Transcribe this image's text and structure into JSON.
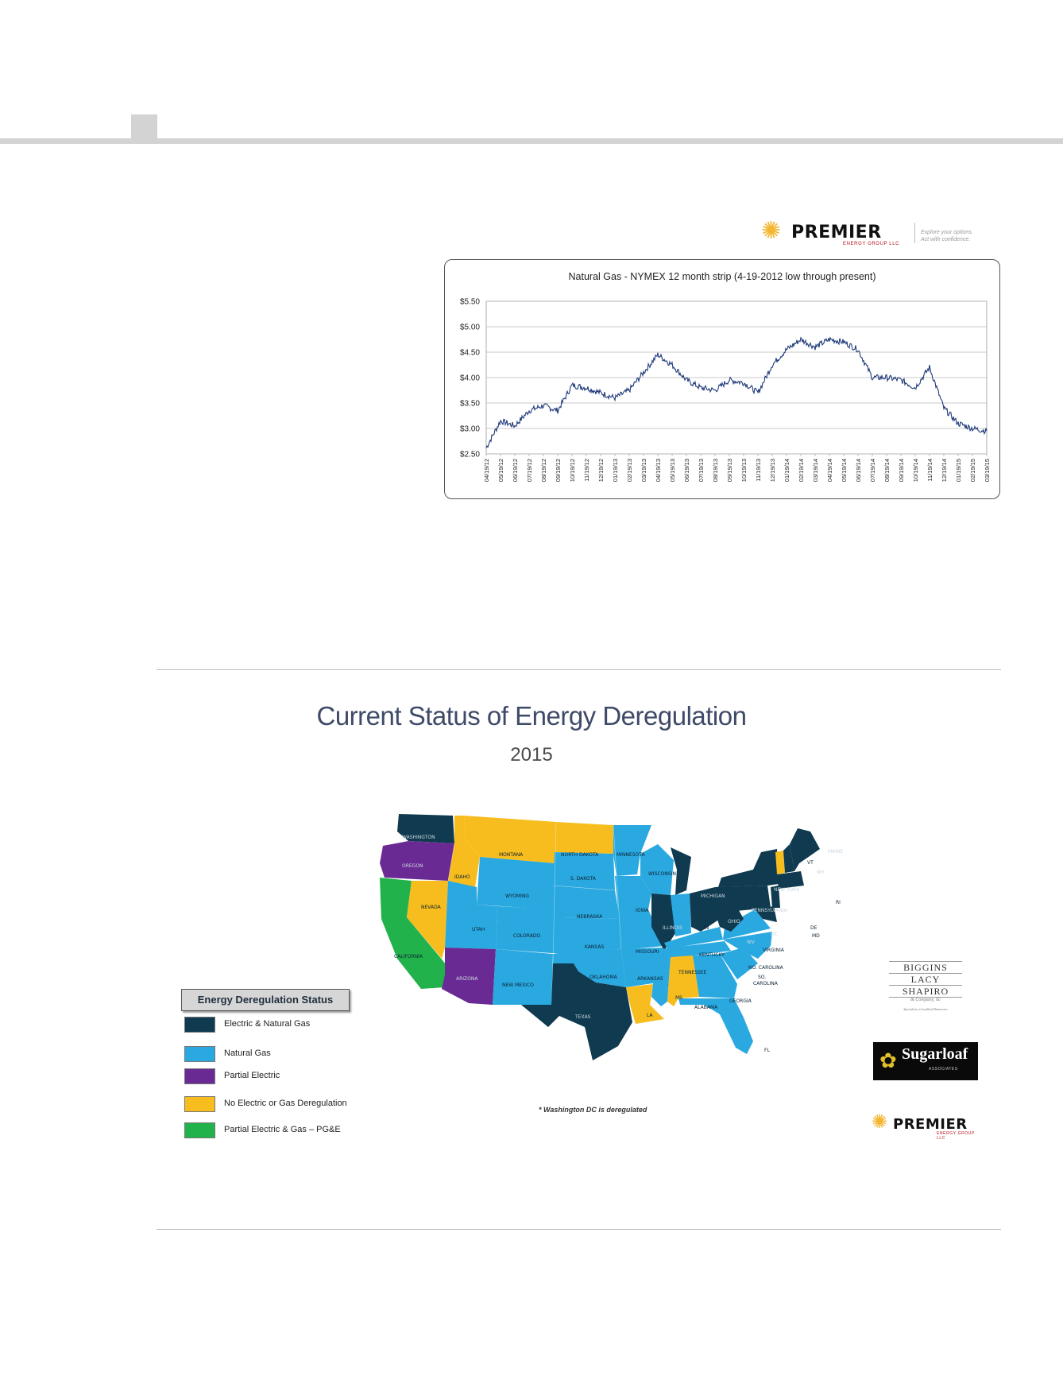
{
  "premier_logo": {
    "brand": "PREMIER",
    "subtitle": "ENERGY GROUP LLC",
    "tagline_line1": "Explore your options.",
    "tagline_line2": "Act with confidence."
  },
  "chart_data": {
    "type": "line",
    "title": "Natural Gas - NYMEX 12 month strip (4-19-2012 low through present)",
    "xlabel": "",
    "ylabel": "",
    "ylim": [
      2.5,
      5.5
    ],
    "y_ticks": [
      "$2.50",
      "$3.00",
      "$3.50",
      "$4.00",
      "$4.50",
      "$5.00",
      "$5.50"
    ],
    "grid": true,
    "categories": [
      "04/19/12",
      "05/19/12",
      "06/19/12",
      "07/19/12",
      "08/19/12",
      "09/19/12",
      "10/19/12",
      "11/19/12",
      "12/19/12",
      "01/19/13",
      "02/19/13",
      "03/19/13",
      "04/19/13",
      "05/19/13",
      "06/19/13",
      "07/19/13",
      "08/19/13",
      "09/19/13",
      "10/19/13",
      "11/19/13",
      "12/19/13",
      "01/19/14",
      "02/19/14",
      "03/19/14",
      "04/19/14",
      "05/19/14",
      "06/19/14",
      "07/19/14",
      "08/19/14",
      "09/19/14",
      "10/19/14",
      "11/19/14",
      "12/19/14",
      "01/19/15",
      "02/19/15",
      "03/19/15"
    ],
    "series": [
      {
        "color": "#1f3a7a",
        "values": [
          2.62,
          3.15,
          3.05,
          3.35,
          3.45,
          3.35,
          3.85,
          3.8,
          3.7,
          3.6,
          3.75,
          4.1,
          4.45,
          4.25,
          3.95,
          3.8,
          3.75,
          3.95,
          3.9,
          3.7,
          4.25,
          4.55,
          4.75,
          4.6,
          4.75,
          4.7,
          4.55,
          4.0,
          4.0,
          3.95,
          3.8,
          4.2,
          3.4,
          3.1,
          3.0,
          2.95
        ]
      }
    ]
  },
  "section2": {
    "title": "Current Status of Energy Deregulation",
    "year": "2015",
    "note": "* Washington DC is deregulated"
  },
  "legend": {
    "title": "Energy Deregulation Status",
    "items": [
      {
        "label": "Electric & Natural Gas",
        "color": "#0f3a4f"
      },
      {
        "label": "Natural Gas",
        "color": "#2aa8e0"
      },
      {
        "label": "Partial Electric",
        "color": "#6a2a93"
      },
      {
        "label": "No Electric or Gas Deregulation",
        "color": "#f7bd1e"
      },
      {
        "label": "Partial Electric & Gas – PG&E",
        "color": "#22b24c"
      }
    ]
  },
  "states": {
    "washington": "WASHINGTON",
    "oregon": "OREGON",
    "california": "CALIFORNIA",
    "nevada": "NEVADA",
    "idaho": "IDAHO",
    "montana": "MONTANA",
    "wyoming": "WYOMING",
    "utah": "UTAH",
    "arizona": "ARIZONA",
    "colorado": "COLORADO",
    "new_mexico": "NEW MEXICO",
    "north_dakota": "NORTH DAKOTA",
    "south_dakota": "S. DAKOTA",
    "nebraska": "NEBRASKA",
    "kansas": "KANSAS",
    "oklahoma": "OKLAHOMA",
    "texas": "TEXAS",
    "minnesota": "MINNESOTA",
    "iowa": "IOWA",
    "missouri": "MISSOURI",
    "arkansas": "ARKANSAS",
    "louisiana": "LA",
    "wisconsin": "WISCONSIN",
    "illinois": "ILLINOIS",
    "michigan": "MICHIGAN",
    "indiana": "IN",
    "ohio": "OHIO",
    "kentucky": "KENTUCKY",
    "tennessee": "TENNESSEE",
    "mississippi": "MS",
    "alabama": "ALABAMA",
    "georgia": "GEORGIA",
    "florida": "FL",
    "south_carolina_1": "SO.",
    "south_carolina_2": "CAROLINA",
    "north_carolina": "NO. CAROLINA",
    "virginia": "VIRGINIA",
    "west_virginia": "WV",
    "dc": "DC",
    "pennsylvania": "PENNSYLVANIA",
    "new_york": "NEW YORK",
    "vermont": "VT",
    "new_hampshire": "NH",
    "maine": "MAINE",
    "rhode_island": "RI",
    "delaware": "DE",
    "maryland": "MD"
  },
  "bls_logo": {
    "line1": "BIGGINS",
    "line2": "LACY",
    "line3": "SHAPIRO",
    "line4": "& Company, llc",
    "line5": "Specialists in Landlord Businesses"
  },
  "sugarloaf_logo": {
    "name": "Sugarloaf",
    "sub": "ASSOCIATES"
  }
}
